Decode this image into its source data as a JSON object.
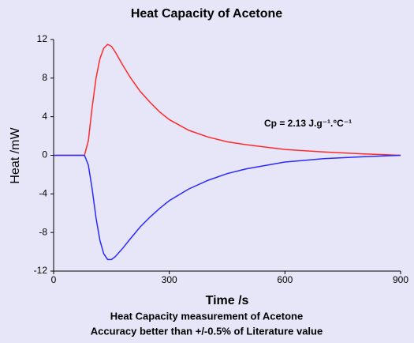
{
  "chart_data": {
    "type": "line",
    "title": "Heat Capacity of Acetone",
    "x_label": "Time /s",
    "y_label": "Heat /mW",
    "annotation": "Cp = 2.13 J.g⁻¹.°C⁻¹",
    "captions": [
      "Heat Capacity measurement of Acetone",
      "Accuracy better than +/-0.5% of Literature value"
    ],
    "x": [
      0,
      50,
      80,
      90,
      100,
      110,
      120,
      130,
      140,
      150,
      160,
      180,
      200,
      225,
      250,
      275,
      300,
      350,
      400,
      450,
      500,
      600,
      700,
      800,
      900
    ],
    "series": [
      {
        "color": "#ff2a2a",
        "values": [
          0,
          0,
          0,
          1.5,
          5,
          8,
          10,
          11.1,
          11.5,
          11.3,
          10.7,
          9.3,
          8,
          6.6,
          5.5,
          4.5,
          3.7,
          2.6,
          1.9,
          1.4,
          1.1,
          0.6,
          0.35,
          0.15,
          0
        ]
      },
      {
        "color": "#2a2aff",
        "values": [
          0,
          0,
          0,
          -1,
          -3.5,
          -6.5,
          -8.8,
          -10.2,
          -10.8,
          -10.8,
          -10.5,
          -9.6,
          -8.6,
          -7.4,
          -6.4,
          -5.5,
          -4.7,
          -3.5,
          -2.6,
          -1.9,
          -1.4,
          -0.7,
          -0.35,
          -0.15,
          0
        ]
      }
    ],
    "xlim": [
      0,
      900
    ],
    "xticks": [
      0,
      300,
      600,
      900
    ],
    "ylim": [
      -12,
      12
    ],
    "yticks": [
      12,
      8,
      4,
      0,
      -4,
      -8,
      -12
    ],
    "grid": false
  }
}
